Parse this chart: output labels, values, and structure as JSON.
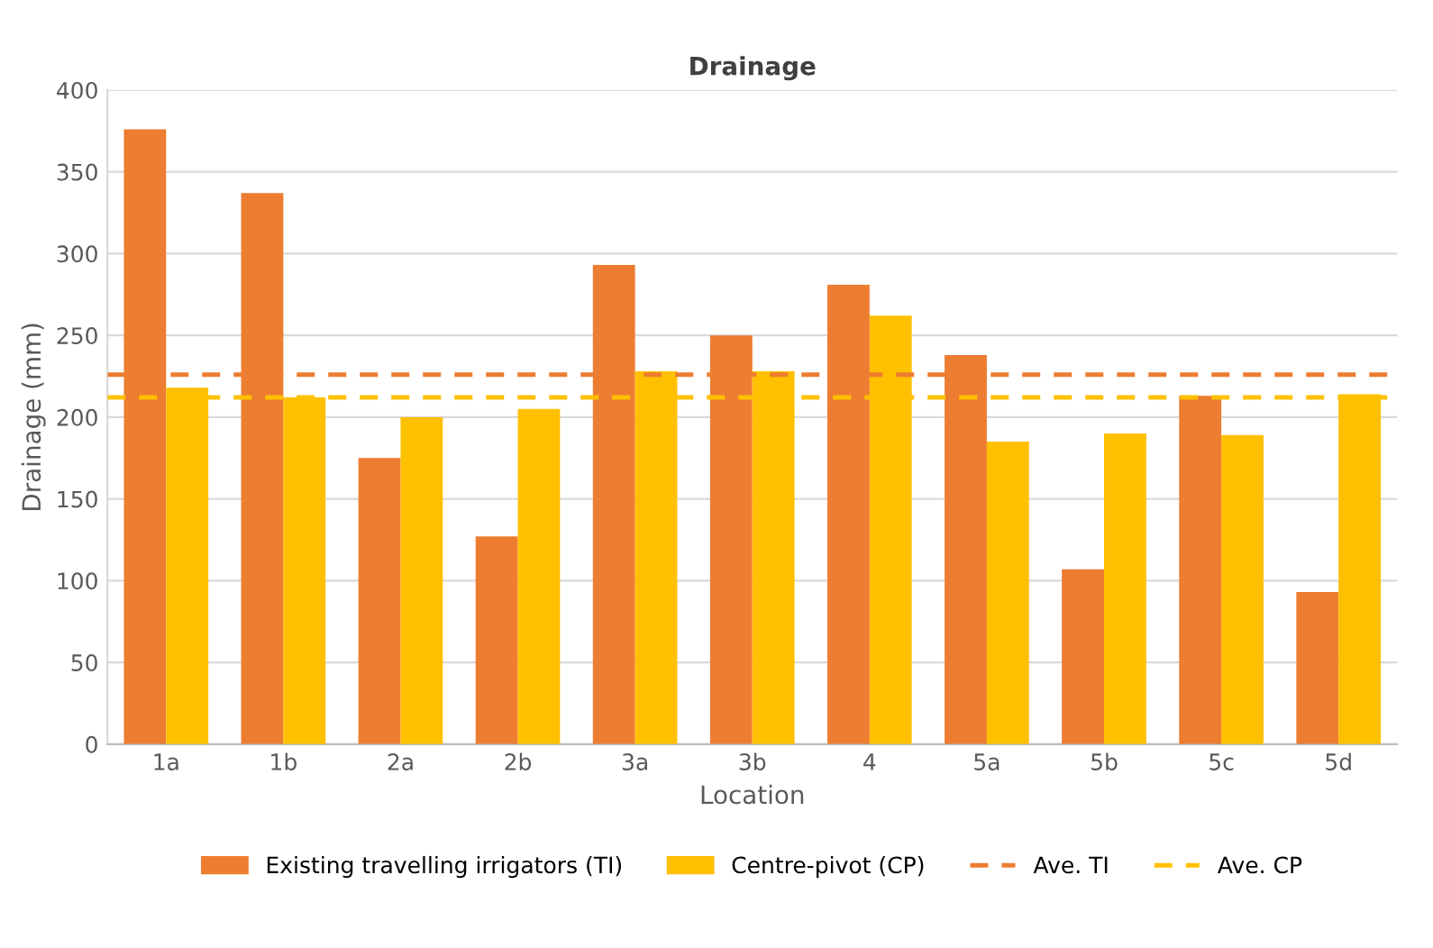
{
  "chart_data": {
    "type": "bar",
    "title": "Drainage",
    "xlabel": "Location",
    "ylabel": "Drainage (mm)",
    "categories": [
      "1a",
      "1b",
      "2a",
      "2b",
      "3a",
      "3b",
      "4",
      "5a",
      "5b",
      "5c",
      "5d"
    ],
    "series": [
      {
        "name": "Existing travelling irrigators (TI)",
        "color": "#ed7d31",
        "values": [
          376,
          337,
          175,
          127,
          293,
          250,
          281,
          238,
          107,
          213,
          93
        ]
      },
      {
        "name": "Centre-pivot (CP)",
        "color": "#ffc000",
        "values": [
          218,
          212,
          200,
          205,
          228,
          228,
          262,
          185,
          190,
          189,
          214
        ]
      }
    ],
    "ref_lines": [
      {
        "axis": "y",
        "value": 226,
        "label": "Ave. TI",
        "color": "#ed7d31",
        "line_style": "dashed"
      },
      {
        "axis": "y",
        "value": 212,
        "label": "Ave. CP",
        "color": "#ffc000",
        "line_style": "dashed"
      }
    ],
    "ylim": [
      0,
      400
    ],
    "yticks": [
      0,
      50,
      100,
      150,
      200,
      250,
      300,
      350,
      400
    ],
    "grid": "y",
    "legend": "bottom"
  }
}
